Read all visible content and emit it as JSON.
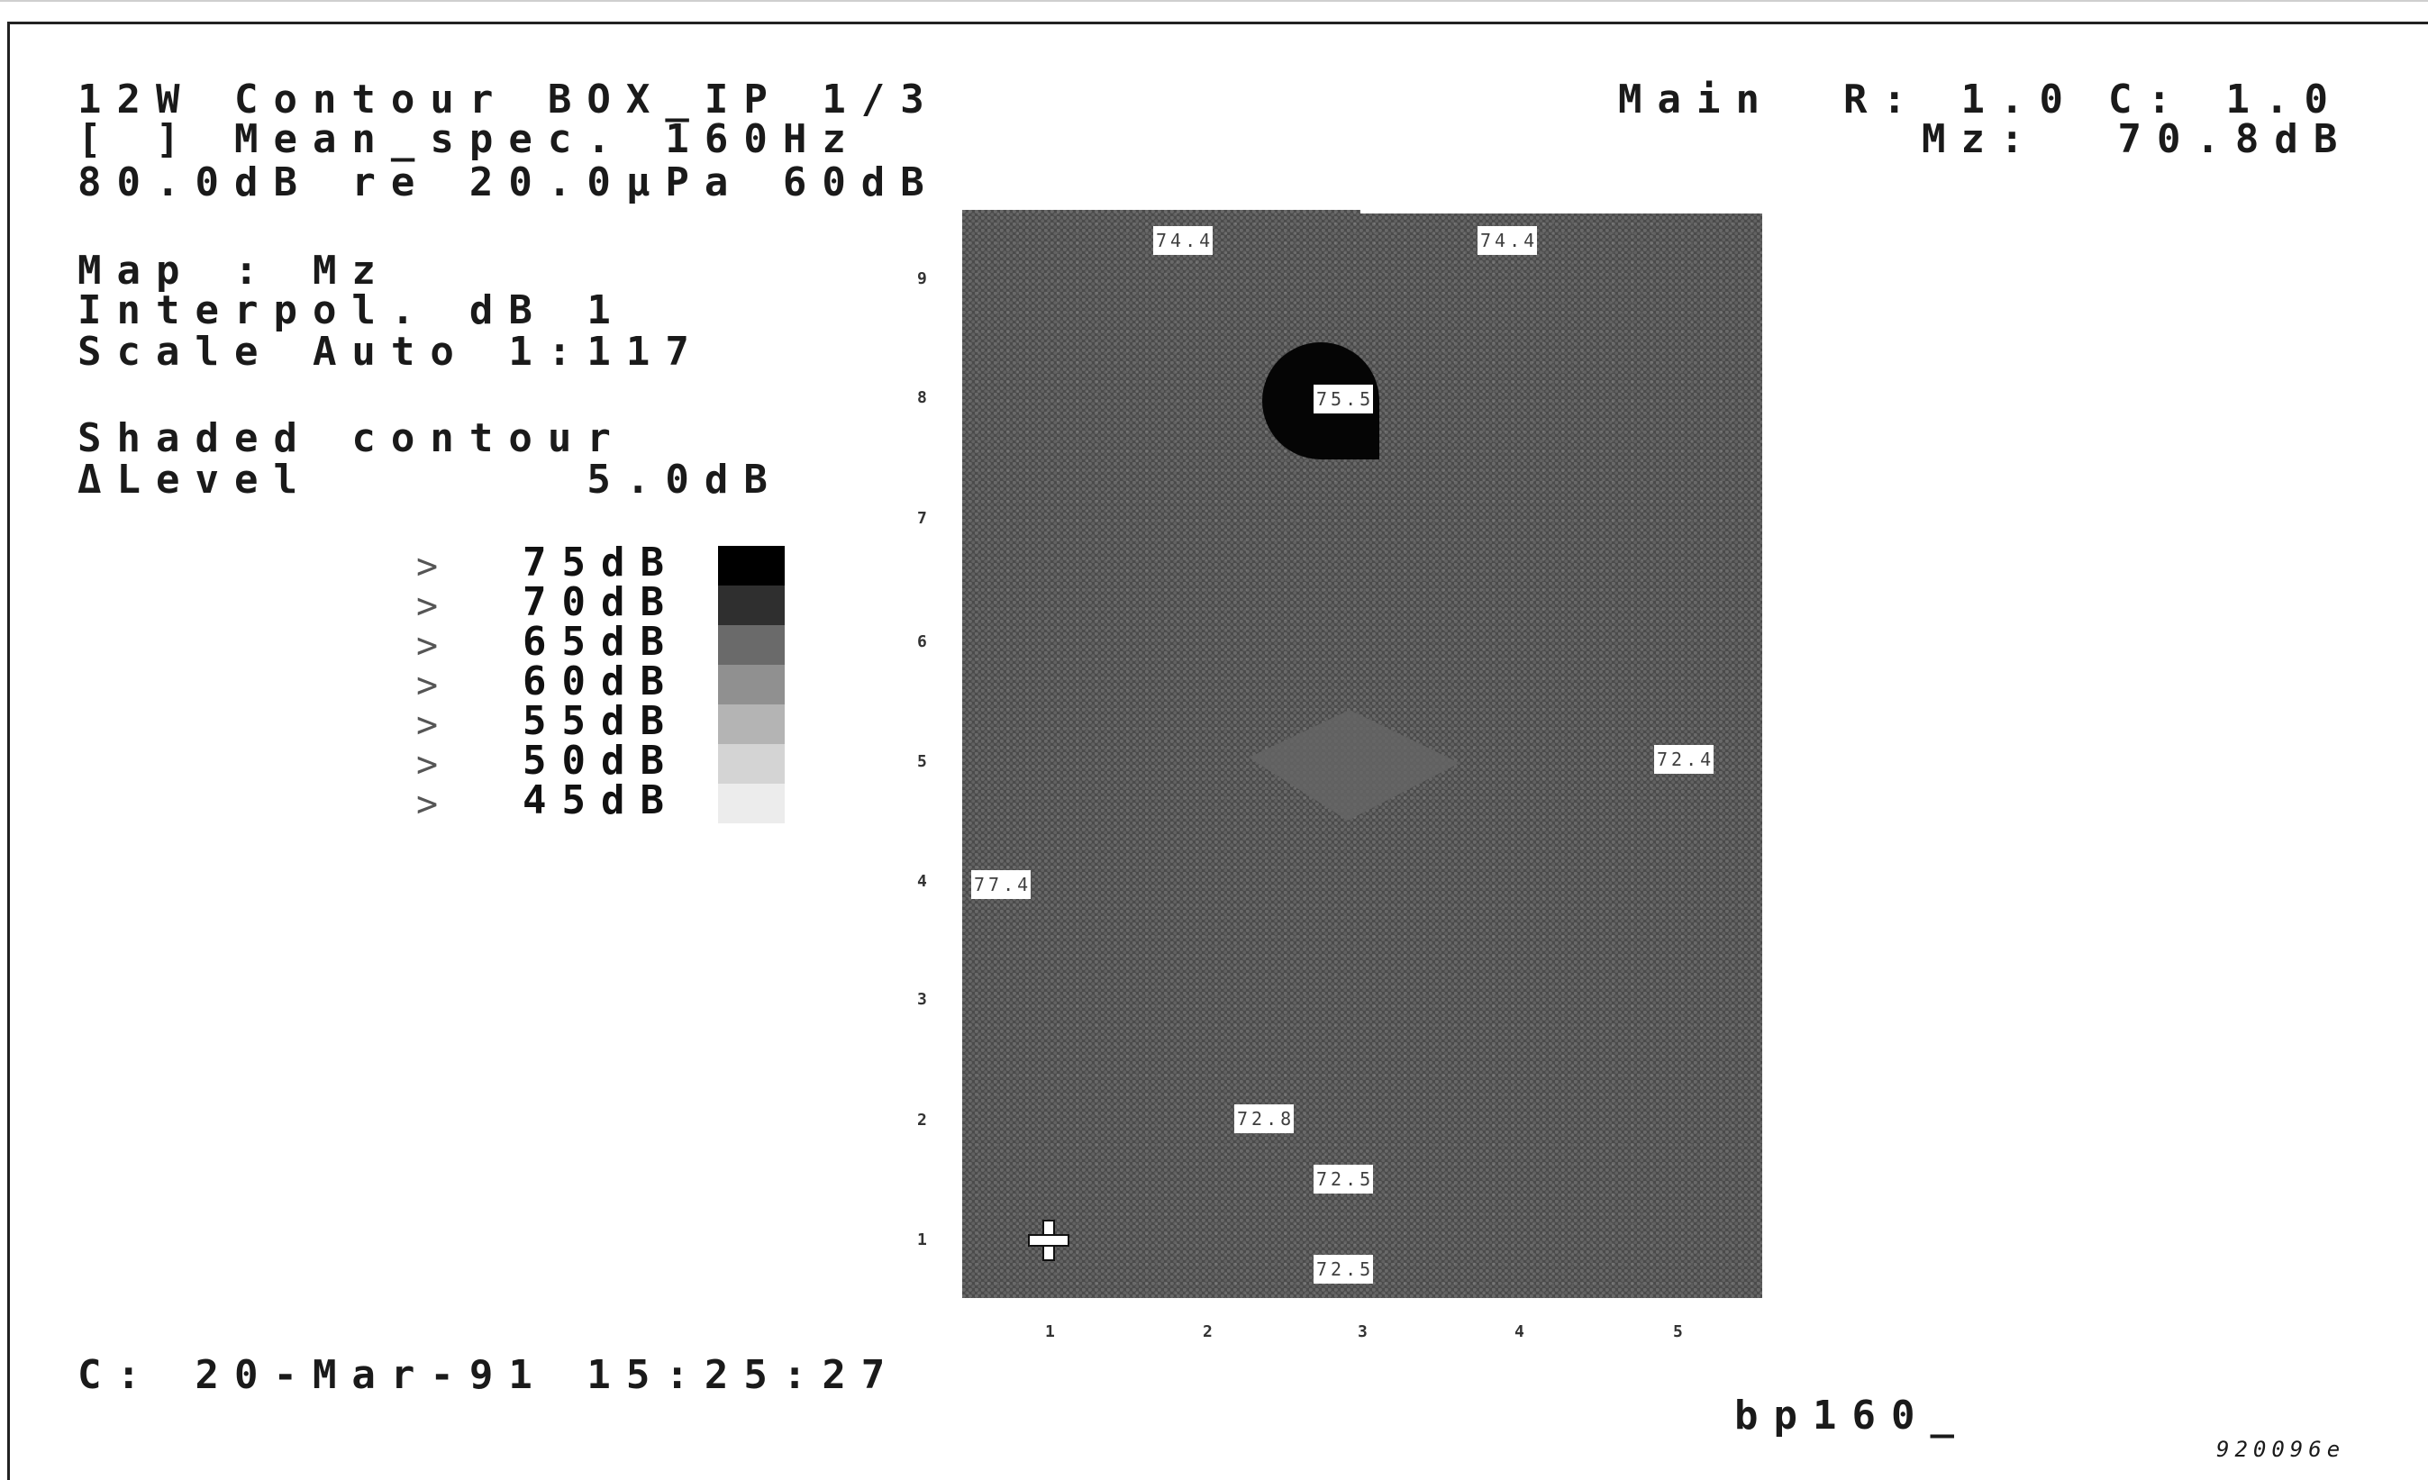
{
  "header": {
    "line1": "12W Contour BOX_IP 1/3",
    "line2": "[ ] Mean_spec. 160Hz",
    "line3": "80.0dB re 20.0µPa 60dB"
  },
  "map_info": {
    "line1": "Map : Mz",
    "line2": "Interpol. dB 1",
    "line3": "Scale Auto 1:117"
  },
  "contour_settings": {
    "line1": "Shaded contour",
    "line2": "ΔLevel       5.0dB"
  },
  "top_right": {
    "main": "Main",
    "r": "R: 1.0",
    "c": "C: 1.0",
    "mz": "Mz:  70.8dB"
  },
  "legend": [
    {
      "arrow": ">",
      "label": "75dB"
    },
    {
      "arrow": ">",
      "label": "70dB"
    },
    {
      "arrow": ">",
      "label": "65dB"
    },
    {
      "arrow": ">",
      "label": "60dB"
    },
    {
      "arrow": ">",
      "label": "55dB"
    },
    {
      "arrow": ">",
      "label": "50dB"
    },
    {
      "arrow": ">",
      "label": "45dB"
    }
  ],
  "plot_labels": [
    "74.4",
    "74.4",
    "75.5",
    "72.4",
    "77.4",
    "72.8",
    "72.5",
    "72.5"
  ],
  "axes": {
    "y_ticks": [
      "9",
      "8",
      "7",
      "6",
      "5",
      "4",
      "3",
      "2",
      "1"
    ],
    "x_ticks": [
      "1",
      "2",
      "3",
      "4",
      "5"
    ]
  },
  "footer": {
    "timestamp": "C: 20-Mar-91 15:25:27",
    "command": "bp160_",
    "figure_id": "920096e"
  },
  "colors": {
    "background": "#ffffff",
    "plot_fill": "#4b4b4b",
    "legend_75": "#000000",
    "legend_70": "#2f2f2f",
    "legend_65": "#6a6a6a",
    "legend_60": "#909090",
    "legend_55": "#b4b4b4",
    "legend_50": "#d4d4d4",
    "legend_45": "#ececec"
  }
}
